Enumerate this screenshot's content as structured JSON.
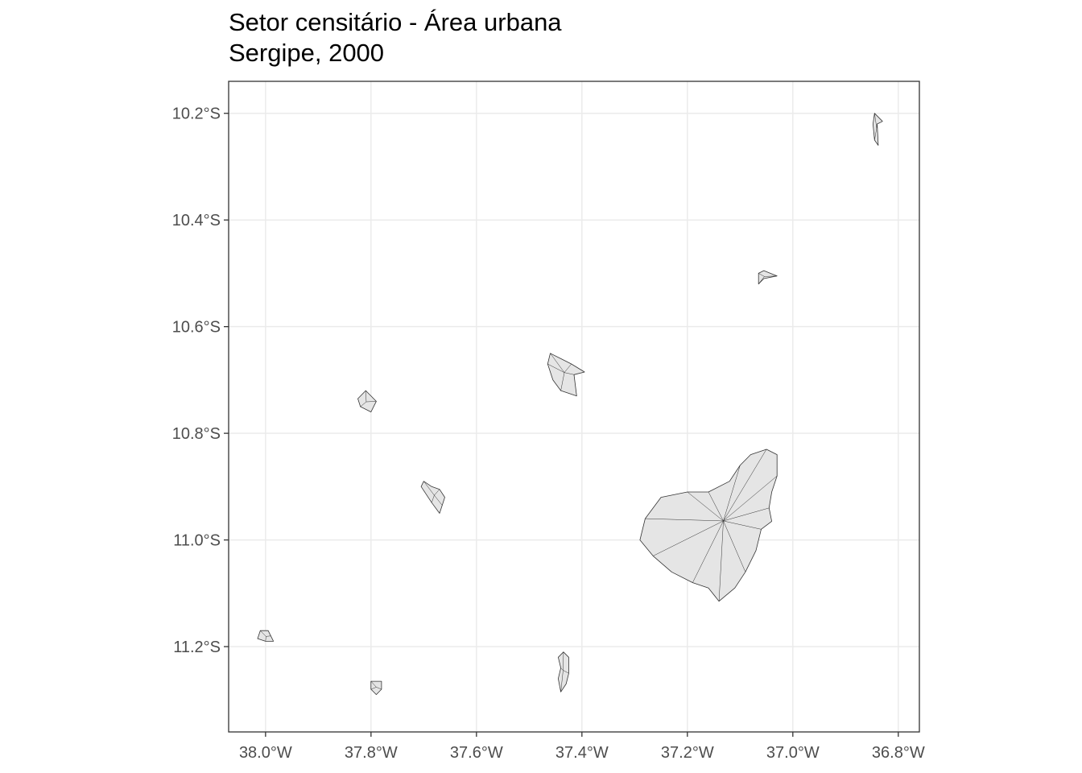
{
  "title": "Setor censitário - Área urbana",
  "subtitle": "Sergipe, 2000",
  "map": {
    "type": "choropleth-outline",
    "fill_color": "#e5e5e5",
    "border_color": "#333333",
    "grid": true,
    "grid_color": "#ebebeb",
    "panel_border_color": "#333333",
    "lon_range": [
      -38.07,
      -36.76
    ],
    "lat_range": [
      -11.36,
      -10.14
    ],
    "x_ticks": [
      {
        "value": -38.0,
        "label": "38.0°W"
      },
      {
        "value": -37.8,
        "label": "37.8°W"
      },
      {
        "value": -37.6,
        "label": "37.6°W"
      },
      {
        "value": -37.4,
        "label": "37.4°W"
      },
      {
        "value": -37.2,
        "label": "37.2°W"
      },
      {
        "value": -37.0,
        "label": "37.0°W"
      },
      {
        "value": -36.8,
        "label": "36.8°W"
      }
    ],
    "y_ticks": [
      {
        "value": -10.2,
        "label": "10.2°S"
      },
      {
        "value": -10.4,
        "label": "10.4°S"
      },
      {
        "value": -10.6,
        "label": "10.6°S"
      },
      {
        "value": -10.8,
        "label": "10.8°S"
      },
      {
        "value": -11.0,
        "label": "11.0°S"
      },
      {
        "value": -11.2,
        "label": "11.2°S"
      }
    ],
    "regions": [
      {
        "id": "aracaju-area",
        "polygon": [
          [
            -37.16,
            -10.91
          ],
          [
            -37.12,
            -10.89
          ],
          [
            -37.1,
            -10.86
          ],
          [
            -37.08,
            -10.84
          ],
          [
            -37.05,
            -10.83
          ],
          [
            -37.03,
            -10.84
          ],
          [
            -37.03,
            -10.88
          ],
          [
            -37.04,
            -10.91
          ],
          [
            -37.045,
            -10.94
          ],
          [
            -37.04,
            -10.965
          ],
          [
            -37.06,
            -10.98
          ],
          [
            -37.07,
            -11.02
          ],
          [
            -37.09,
            -11.06
          ],
          [
            -37.11,
            -11.09
          ],
          [
            -37.14,
            -11.115
          ],
          [
            -37.16,
            -11.09
          ],
          [
            -37.19,
            -11.08
          ],
          [
            -37.23,
            -11.06
          ],
          [
            -37.265,
            -11.03
          ],
          [
            -37.29,
            -11.0
          ],
          [
            -37.28,
            -10.96
          ],
          [
            -37.25,
            -10.92
          ],
          [
            -37.2,
            -10.91
          ]
        ]
      },
      {
        "id": "capela",
        "polygon": [
          [
            -37.46,
            -10.65
          ],
          [
            -37.44,
            -10.66
          ],
          [
            -37.42,
            -10.67
          ],
          [
            -37.395,
            -10.685
          ],
          [
            -37.415,
            -10.69
          ],
          [
            -37.41,
            -10.73
          ],
          [
            -37.44,
            -10.72
          ],
          [
            -37.455,
            -10.7
          ],
          [
            -37.465,
            -10.67
          ]
        ]
      },
      {
        "id": "brejo-grande",
        "polygon": [
          [
            -36.845,
            -10.2
          ],
          [
            -36.83,
            -10.215
          ],
          [
            -36.84,
            -10.22
          ],
          [
            -36.838,
            -10.26
          ],
          [
            -36.845,
            -10.25
          ],
          [
            -36.848,
            -10.22
          ]
        ]
      },
      {
        "id": "pacatuba",
        "polygon": [
          [
            -37.065,
            -10.5
          ],
          [
            -37.055,
            -10.495
          ],
          [
            -37.03,
            -10.505
          ],
          [
            -37.055,
            -10.51
          ],
          [
            -37.065,
            -10.52
          ]
        ]
      },
      {
        "id": "nossa-senhora-gloria",
        "polygon": [
          [
            -37.81,
            -10.72
          ],
          [
            -37.825,
            -10.735
          ],
          [
            -37.82,
            -10.75
          ],
          [
            -37.8,
            -10.76
          ],
          [
            -37.79,
            -10.74
          ]
        ]
      },
      {
        "id": "itabaiana",
        "polygon": [
          [
            -37.7,
            -10.89
          ],
          [
            -37.685,
            -10.9
          ],
          [
            -37.67,
            -10.905
          ],
          [
            -37.66,
            -10.92
          ],
          [
            -37.665,
            -10.935
          ],
          [
            -37.67,
            -10.95
          ],
          [
            -37.685,
            -10.93
          ],
          [
            -37.705,
            -10.9
          ]
        ]
      },
      {
        "id": "tobias-barreto",
        "polygon": [
          [
            -38.01,
            -11.17
          ],
          [
            -37.995,
            -11.17
          ],
          [
            -37.99,
            -11.18
          ],
          [
            -37.985,
            -11.19
          ],
          [
            -38.0,
            -11.19
          ],
          [
            -38.015,
            -11.185
          ]
        ]
      },
      {
        "id": "itabaianinha",
        "polygon": [
          [
            -37.8,
            -11.265
          ],
          [
            -37.78,
            -11.265
          ],
          [
            -37.78,
            -11.28
          ],
          [
            -37.79,
            -11.29
          ],
          [
            -37.8,
            -11.28
          ]
        ]
      },
      {
        "id": "estancia",
        "polygon": [
          [
            -37.435,
            -11.21
          ],
          [
            -37.425,
            -11.22
          ],
          [
            -37.425,
            -11.25
          ],
          [
            -37.43,
            -11.27
          ],
          [
            -37.44,
            -11.285
          ],
          [
            -37.445,
            -11.26
          ],
          [
            -37.44,
            -11.24
          ],
          [
            -37.445,
            -11.22
          ]
        ]
      }
    ]
  }
}
